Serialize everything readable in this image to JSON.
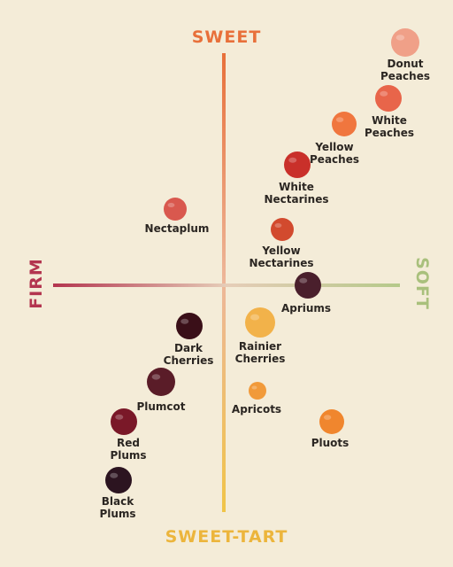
{
  "axes": {
    "top": "SWEET",
    "bottom": "SWEET-TART",
    "left": "FIRM",
    "right": "SOFT"
  },
  "items": [
    {
      "lines": [
        "Donut",
        "Peaches"
      ]
    },
    {
      "lines": [
        "White",
        "Peaches"
      ]
    },
    {
      "lines": [
        "Yellow",
        "Peaches"
      ]
    },
    {
      "lines": [
        "White",
        "Nectarines"
      ]
    },
    {
      "lines": [
        "Nectaplum"
      ]
    },
    {
      "lines": [
        "Yellow",
        "Nectarines"
      ]
    },
    {
      "lines": [
        "Apriums"
      ]
    },
    {
      "lines": [
        "Dark",
        "Cherries"
      ]
    },
    {
      "lines": [
        "Rainier",
        "Cherries"
      ]
    },
    {
      "lines": [
        "Plumcot"
      ]
    },
    {
      "lines": [
        "Apricots"
      ]
    },
    {
      "lines": [
        "Pluots"
      ]
    },
    {
      "lines": [
        "Red",
        "Plums"
      ]
    },
    {
      "lines": [
        "Black",
        "Plums"
      ]
    }
  ]
}
